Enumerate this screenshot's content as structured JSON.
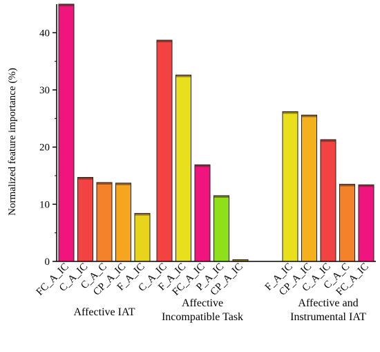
{
  "chart_data": {
    "type": "bar",
    "ylabel": "Normalized feature importance (%)",
    "ylim": [
      0,
      45
    ],
    "yticks": [
      0,
      10,
      20,
      30,
      40
    ],
    "grid": false,
    "groups": [
      {
        "name": "Affective IAT",
        "name_lines": [
          "Affective IAT"
        ],
        "categories": [
          "FC_A_IC",
          "C_A_IC",
          "C_A_C",
          "CP_A_IC",
          "F_A_IC"
        ],
        "values": [
          45.5,
          14.7,
          13.8,
          13.7,
          8.4
        ],
        "colors": [
          "#f0147f",
          "#f24242",
          "#f4822a",
          "#f5a61e",
          "#e8d41c"
        ]
      },
      {
        "name": "Affective Incompatible Task",
        "name_lines": [
          "Affective",
          "Incompatible Task"
        ],
        "categories": [
          "C_A_IC",
          "F_A_IC",
          "FC_A_IC",
          "P_A_IC",
          "CP_A_IC"
        ],
        "values": [
          38.7,
          32.6,
          16.9,
          11.5,
          0.3
        ],
        "colors": [
          "#f24242",
          "#e8e01c",
          "#f0147f",
          "#8ee01a",
          "#e8e01c"
        ]
      },
      {
        "name": "Affective and Instrumental IAT",
        "name_lines": [
          "Affective and",
          "Instrumental IAT"
        ],
        "categories": [
          "F_A_IC",
          "CP_A_IC",
          "C_A_IC",
          "C_A_C",
          "FC_A_IC"
        ],
        "values": [
          26.2,
          25.6,
          21.3,
          13.5,
          13.4
        ],
        "colors": [
          "#e8e01c",
          "#f5b01e",
          "#f24242",
          "#f4822a",
          "#f0147f"
        ]
      }
    ]
  }
}
